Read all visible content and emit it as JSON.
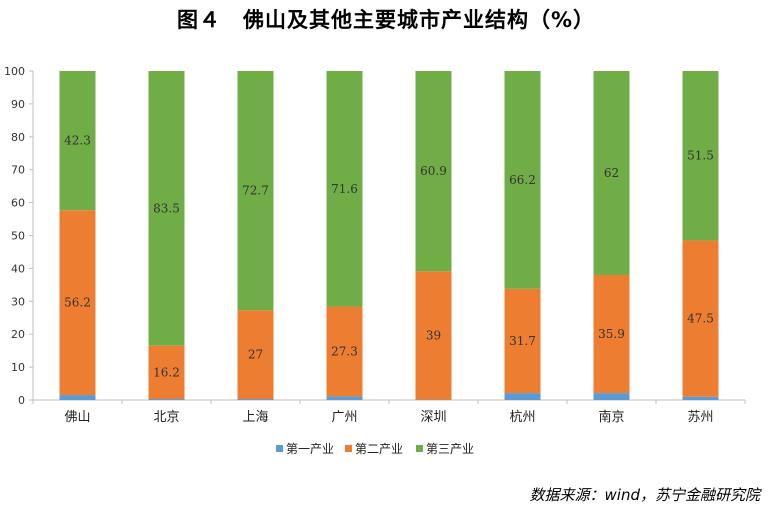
{
  "title": "图４　佛山及其他主要城市产业结构（%）",
  "source": "数据来源：wind，苏宁金融研究院",
  "chart_data": {
    "type": "bar",
    "stacked": true,
    "title": "图４　佛山及其他主要城市产业结构（%）",
    "categories": [
      "佛山",
      "北京",
      "上海",
      "广州",
      "深圳",
      "杭州",
      "南京",
      "苏州"
    ],
    "series": [
      {
        "name": "第一产业",
        "color": "#5b9bd5",
        "values": [
          1.5,
          0.3,
          0.3,
          1.1,
          0.1,
          2.1,
          2.1,
          1.0
        ],
        "labels": [
          "",
          "",
          "",
          "",
          "",
          "",
          "",
          ""
        ]
      },
      {
        "name": "第二产业",
        "color": "#ed7d31",
        "values": [
          56.2,
          16.2,
          27,
          27.3,
          39,
          31.7,
          35.9,
          47.5
        ],
        "labels": [
          "56.2",
          "16.2",
          "27",
          "27.3",
          "39",
          "31.7",
          "35.9",
          "47.5"
        ]
      },
      {
        "name": "第三产业",
        "color": "#70ad47",
        "values": [
          42.3,
          83.5,
          72.7,
          71.6,
          60.9,
          66.2,
          62,
          51.5
        ],
        "labels": [
          "42.3",
          "83.5",
          "72.7",
          "71.6",
          "60.9",
          "66.2",
          "62",
          "51.5"
        ]
      }
    ],
    "ylim": [
      0,
      100
    ],
    "yticks": [
      "0",
      "10",
      "20",
      "30",
      "40",
      "50",
      "60",
      "70",
      "80",
      "90",
      "100"
    ],
    "grid": false,
    "legend": "bottom"
  }
}
